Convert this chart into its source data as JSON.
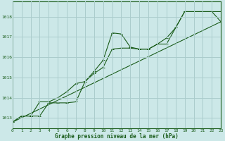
{
  "title": "Graphe pression niveau de la mer (hPa)",
  "bg_color": "#cce8e8",
  "grid_color": "#aacccc",
  "line_color": "#1a5c1a",
  "xlim": [
    0,
    23
  ],
  "ylim": [
    1012.5,
    1018.75
  ],
  "yticks": [
    1013,
    1014,
    1015,
    1016,
    1017,
    1018
  ],
  "xticks": [
    0,
    1,
    2,
    3,
    4,
    5,
    6,
    7,
    8,
    9,
    10,
    11,
    12,
    13,
    14,
    15,
    16,
    17,
    18,
    19,
    20,
    21,
    22,
    23
  ],
  "series1": [
    [
      0,
      1012.8
    ],
    [
      1,
      1013.1
    ],
    [
      2,
      1013.1
    ],
    [
      3,
      1013.1
    ],
    [
      4,
      1013.75
    ],
    [
      5,
      1013.75
    ],
    [
      6,
      1013.75
    ],
    [
      7,
      1013.8
    ],
    [
      8,
      1014.8
    ],
    [
      9,
      1015.3
    ],
    [
      10,
      1015.85
    ],
    [
      11,
      1017.2
    ],
    [
      12,
      1017.15
    ],
    [
      13,
      1016.5
    ],
    [
      14,
      1016.4
    ],
    [
      15,
      1016.4
    ],
    [
      16,
      1016.65
    ],
    [
      17,
      1016.65
    ],
    [
      18,
      1017.45
    ],
    [
      19,
      1018.25
    ],
    [
      20,
      1018.25
    ],
    [
      21,
      1018.25
    ],
    [
      22,
      1018.25
    ],
    [
      23,
      1018.25
    ]
  ],
  "series2": [
    [
      0,
      1012.8
    ],
    [
      1,
      1013.1
    ],
    [
      2,
      1013.1
    ],
    [
      3,
      1013.8
    ],
    [
      4,
      1013.8
    ],
    [
      5,
      1014.0
    ],
    [
      6,
      1014.3
    ],
    [
      7,
      1014.7
    ],
    [
      8,
      1014.8
    ],
    [
      9,
      1015.2
    ],
    [
      10,
      1015.5
    ],
    [
      11,
      1016.4
    ],
    [
      12,
      1016.45
    ],
    [
      13,
      1016.45
    ],
    [
      14,
      1016.4
    ],
    [
      15,
      1016.4
    ],
    [
      16,
      1016.65
    ],
    [
      17,
      1016.95
    ],
    [
      18,
      1017.45
    ],
    [
      19,
      1018.25
    ],
    [
      20,
      1018.25
    ],
    [
      21,
      1018.25
    ],
    [
      22,
      1018.25
    ],
    [
      23,
      1017.75
    ]
  ],
  "series3_straight": [
    [
      0,
      1012.8
    ],
    [
      23,
      1017.75
    ]
  ]
}
